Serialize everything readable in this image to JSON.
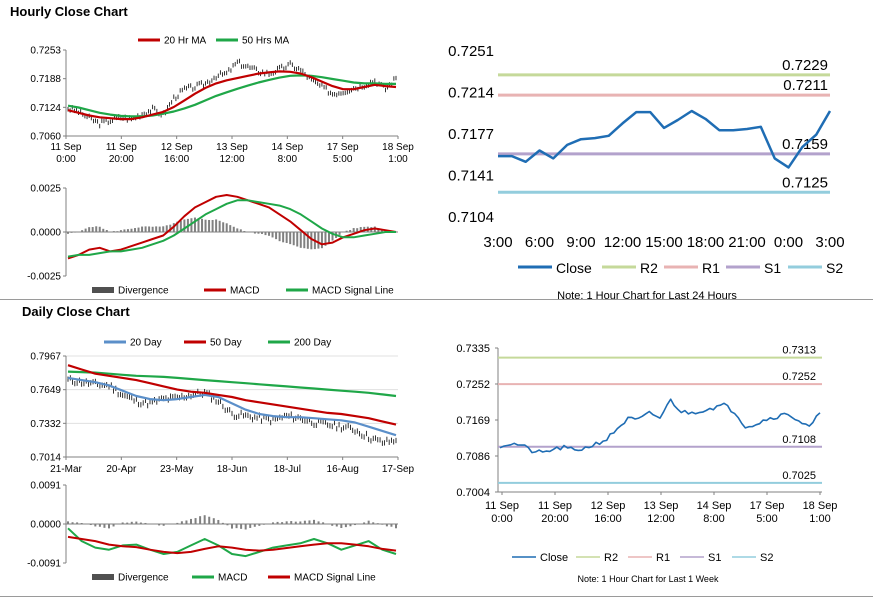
{
  "sections": {
    "hourly_title": "Hourly Close Chart",
    "daily_title": "Daily Close Chart"
  },
  "colors": {
    "close": "#1f6db4",
    "r2": "#c5d99a",
    "r1": "#e8b3b3",
    "s1": "#b3a2cc",
    "s2": "#93cddd",
    "ma_short": "#c00000",
    "ma_long": "#1fa748",
    "ma_daily20": "#5b8fc9",
    "divergence": "#808080"
  },
  "chart_data": [
    {
      "id": "hourly_price",
      "type": "line",
      "title": "",
      "y_ticks": [
        "0.7253",
        "0.7188",
        "0.7124",
        "0.7060"
      ],
      "ylim": [
        0.706,
        0.7253
      ],
      "x_ticks": [
        [
          "11 Sep",
          "0:00"
        ],
        [
          "11 Sep",
          "20:00"
        ],
        [
          "12 Sep",
          "16:00"
        ],
        [
          "13 Sep",
          "12:00"
        ],
        [
          "14 Sep",
          "8:00"
        ],
        [
          "17 Sep",
          "5:00"
        ],
        [
          "18 Sep",
          "1:00"
        ]
      ],
      "legend": [
        "20 Hr MA",
        "50 Hrs MA"
      ],
      "series": [
        {
          "name": "20 Hr MA",
          "values": [
            0.7118,
            0.7112,
            0.7106,
            0.7102,
            0.71,
            0.7098,
            0.7098,
            0.7102,
            0.7108,
            0.7114,
            0.7125,
            0.714,
            0.7155,
            0.7168,
            0.7178,
            0.7185,
            0.719,
            0.7195,
            0.72,
            0.7203,
            0.7205,
            0.7204,
            0.72,
            0.7192,
            0.7182,
            0.7172,
            0.7165,
            0.7165,
            0.717,
            0.7175,
            0.7172,
            0.717
          ]
        },
        {
          "name": "50 Hrs MA",
          "values": [
            0.7128,
            0.7124,
            0.7118,
            0.7112,
            0.7108,
            0.7105,
            0.7104,
            0.7104,
            0.7106,
            0.711,
            0.7115,
            0.7122,
            0.713,
            0.714,
            0.715,
            0.7158,
            0.7166,
            0.7173,
            0.718,
            0.7186,
            0.7191,
            0.7195,
            0.7196,
            0.7195,
            0.7192,
            0.7188,
            0.7184,
            0.718,
            0.7178,
            0.7178,
            0.7177,
            0.7177
          ]
        }
      ],
      "close": [
        0.7122,
        0.7115,
        0.71,
        0.7088,
        0.7095,
        0.7102,
        0.7098,
        0.711,
        0.712,
        0.7108,
        0.7145,
        0.7165,
        0.717,
        0.7178,
        0.7195,
        0.72,
        0.7225,
        0.7215,
        0.7205,
        0.72,
        0.721,
        0.722,
        0.7208,
        0.7185,
        0.717,
        0.7155,
        0.716,
        0.7168,
        0.7175,
        0.7185,
        0.7165,
        0.719
      ]
    },
    {
      "id": "hourly_macd",
      "type": "line",
      "title": "",
      "y_ticks": [
        "0.0025",
        "0.0000",
        "-0.0025"
      ],
      "ylim": [
        -0.0025,
        0.0025
      ],
      "legend": [
        "Divergence",
        "MACD",
        "MACD Signal Line"
      ],
      "series": [
        {
          "name": "MACD",
          "values": [
            -0.0015,
            -0.0013,
            -0.001,
            -0.0009,
            -0.0011,
            -0.001,
            -0.0008,
            -0.0006,
            -0.0004,
            -0.0002,
            0.0003,
            0.0009,
            0.0014,
            0.0017,
            0.002,
            0.0021,
            0.002,
            0.0018,
            0.0016,
            0.0014,
            0.001,
            0.0006,
            0.0001,
            -0.0004,
            -0.0007,
            -0.0006,
            -0.0003,
            -0.0001,
            0.0001,
            0.0002,
            0.0001,
            0.0
          ]
        },
        {
          "name": "MACD Signal Line",
          "values": [
            -0.0014,
            -0.0013,
            -0.0013,
            -0.0012,
            -0.0011,
            -0.0011,
            -0.001,
            -0.0009,
            -0.0007,
            -0.0005,
            -0.0002,
            0.0002,
            0.0006,
            0.001,
            0.0013,
            0.0016,
            0.0018,
            0.0018,
            0.0017,
            0.0016,
            0.0015,
            0.0013,
            0.001,
            0.0006,
            0.0002,
            -0.0001,
            -0.0003,
            -0.0003,
            -0.0002,
            -0.0001,
            0.0,
            0.0
          ]
        }
      ],
      "divergence": [
        -0.0001,
        0.0,
        0.0003,
        0.0003,
        0.0,
        0.0001,
        0.0002,
        0.0003,
        0.0003,
        0.0003,
        0.0005,
        0.0007,
        0.0008,
        0.0007,
        0.0007,
        0.0005,
        0.0002,
        0.0,
        -0.0001,
        -0.0002,
        -0.0005,
        -0.0007,
        -0.0009,
        -0.001,
        -0.0009,
        -0.0005,
        0.0,
        0.0002,
        0.0003,
        0.0003,
        0.0001,
        0.0
      ]
    },
    {
      "id": "hourly_24h",
      "type": "line",
      "title": "",
      "y_ticks": [
        "0.7251",
        "0.7214",
        "0.7177",
        "0.7141",
        "0.7104"
      ],
      "ylim": [
        0.7104,
        0.7251
      ],
      "x_ticks": [
        "3:00",
        "6:00",
        "9:00",
        "12:00",
        "15:00",
        "18:00",
        "21:00",
        "0:00",
        "3:00"
      ],
      "levels": [
        {
          "name": "R2",
          "value": 0.7229,
          "label": "0.7229"
        },
        {
          "name": "R1",
          "value": 0.7211,
          "label": "0.7211"
        },
        {
          "name": "S1",
          "value": 0.7159,
          "label": "0.7159"
        },
        {
          "name": "S2",
          "value": 0.7125,
          "label": "0.7125"
        }
      ],
      "legend": [
        "Close",
        "R2",
        "R1",
        "S1",
        "S2"
      ],
      "close": [
        0.7157,
        0.7157,
        0.7152,
        0.7162,
        0.7155,
        0.7167,
        0.7172,
        0.7173,
        0.7175,
        0.7186,
        0.7196,
        0.7196,
        0.7182,
        0.7189,
        0.7197,
        0.719,
        0.718,
        0.718,
        0.7181,
        0.7183,
        0.7155,
        0.7147,
        0.7165,
        0.7176,
        0.7197
      ],
      "note": "Note: 1 Hour Chart for Last 24 Hours"
    },
    {
      "id": "daily_price",
      "type": "line",
      "title": "",
      "y_ticks": [
        "0.7967",
        "0.7649",
        "0.7332",
        "0.7014"
      ],
      "ylim": [
        0.7014,
        0.7967
      ],
      "x_ticks": [
        "21-Mar",
        "20-Apr",
        "23-May",
        "18-Jun",
        "18-Jul",
        "16-Aug",
        "17-Sep"
      ],
      "legend": [
        "20 Day",
        "50 Day",
        "200 Day"
      ],
      "series": [
        {
          "name": "20 Day",
          "values": [
            0.776,
            0.774,
            0.772,
            0.769,
            0.764,
            0.759,
            0.756,
            0.755,
            0.756,
            0.758,
            0.76,
            0.758,
            0.752,
            0.746,
            0.742,
            0.74,
            0.739,
            0.739,
            0.738,
            0.737,
            0.736,
            0.734,
            0.73,
            0.726,
            0.722
          ]
        },
        {
          "name": "50 Day",
          "values": [
            0.788,
            0.784,
            0.78,
            0.778,
            0.776,
            0.774,
            0.771,
            0.768,
            0.765,
            0.763,
            0.762,
            0.76,
            0.758,
            0.755,
            0.753,
            0.751,
            0.749,
            0.747,
            0.745,
            0.743,
            0.742,
            0.74,
            0.738,
            0.735,
            0.732
          ]
        },
        {
          "name": "200 Day",
          "values": [
            0.782,
            0.7815,
            0.781,
            0.78,
            0.779,
            0.778,
            0.7775,
            0.777,
            0.776,
            0.775,
            0.774,
            0.773,
            0.772,
            0.771,
            0.77,
            0.769,
            0.768,
            0.767,
            0.766,
            0.765,
            0.764,
            0.763,
            0.762,
            0.7605,
            0.759
          ]
        }
      ],
      "close": [
        0.774,
        0.772,
        0.77,
        0.769,
        0.76,
        0.754,
        0.752,
        0.756,
        0.757,
        0.76,
        0.762,
        0.754,
        0.742,
        0.74,
        0.738,
        0.736,
        0.74,
        0.738,
        0.734,
        0.732,
        0.73,
        0.727,
        0.72,
        0.715,
        0.717
      ]
    },
    {
      "id": "daily_macd",
      "type": "line",
      "title": "",
      "y_ticks": [
        "0.0091",
        "0.0000",
        "-0.0091"
      ],
      "ylim": [
        -0.0091,
        0.0091
      ],
      "legend": [
        "Divergence",
        "MACD",
        "MACD Signal Line"
      ],
      "series": [
        {
          "name": "MACD",
          "values": [
            -0.001,
            -0.004,
            -0.0055,
            -0.006,
            -0.005,
            -0.0048,
            -0.006,
            -0.007,
            -0.0065,
            -0.005,
            -0.0035,
            -0.005,
            -0.007,
            -0.0075,
            -0.0065,
            -0.0055,
            -0.005,
            -0.0045,
            -0.0035,
            -0.0045,
            -0.006,
            -0.005,
            -0.004,
            -0.006,
            -0.007
          ]
        },
        {
          "name": "MACD Signal Line",
          "values": [
            -0.003,
            -0.0035,
            -0.004,
            -0.0048,
            -0.0052,
            -0.0054,
            -0.006,
            -0.0065,
            -0.0068,
            -0.0065,
            -0.0058,
            -0.0052,
            -0.0055,
            -0.006,
            -0.0062,
            -0.006,
            -0.0056,
            -0.0052,
            -0.0048,
            -0.0045,
            -0.0045,
            -0.0048,
            -0.0052,
            -0.0058,
            -0.0062
          ]
        }
      ],
      "divergence": [
        0.0006,
        0.0002,
        -0.0005,
        -0.001,
        0.0003,
        0.0005,
        0.0,
        -0.0004,
        0.0002,
        0.0012,
        0.002,
        0.001,
        -0.001,
        -0.0012,
        -0.0004,
        0.0004,
        0.0006,
        0.0006,
        0.001,
        0.0,
        -0.001,
        -0.0002,
        0.0008,
        -0.0002,
        -0.001
      ]
    },
    {
      "id": "daily_1week",
      "type": "line",
      "title": "",
      "y_ticks": [
        "0.7335",
        "0.7252",
        "0.7169",
        "0.7086",
        "0.7004"
      ],
      "ylim": [
        0.7004,
        0.7335
      ],
      "x_ticks": [
        [
          "11 Sep",
          "0:00"
        ],
        [
          "11 Sep",
          "20:00"
        ],
        [
          "12 Sep",
          "16:00"
        ],
        [
          "13 Sep",
          "12:00"
        ],
        [
          "14 Sep",
          "8:00"
        ],
        [
          "17 Sep",
          "5:00"
        ],
        [
          "18 Sep",
          "1:00"
        ]
      ],
      "levels": [
        {
          "name": "R2",
          "value": 0.7313,
          "label": "0.7313"
        },
        {
          "name": "R1",
          "value": 0.7252,
          "label": "0.7252"
        },
        {
          "name": "S1",
          "value": 0.7108,
          "label": "0.7108"
        },
        {
          "name": "S2",
          "value": 0.7025,
          "label": "0.7025"
        }
      ],
      "legend": [
        "Close",
        "R2",
        "R1",
        "S1",
        "S2"
      ],
      "close": [
        0.711,
        0.7115,
        0.7112,
        0.7098,
        0.7094,
        0.7102,
        0.7106,
        0.71,
        0.7105,
        0.7115,
        0.7125,
        0.715,
        0.7172,
        0.717,
        0.7185,
        0.7175,
        0.7215,
        0.7188,
        0.7186,
        0.7192,
        0.7198,
        0.7204,
        0.7188,
        0.7155,
        0.716,
        0.7172,
        0.7178,
        0.7184,
        0.7168,
        0.7152,
        0.7186
      ],
      "note": "Note: 1 Hour Chart for Last 1 Week"
    }
  ]
}
